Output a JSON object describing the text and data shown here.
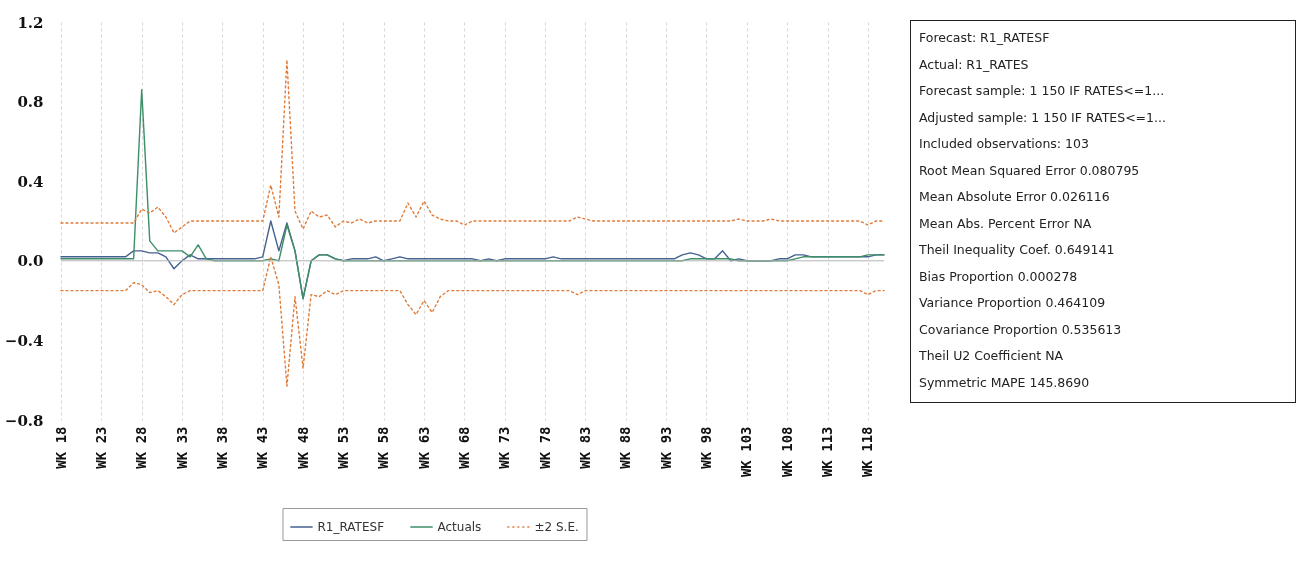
{
  "chart_data": [
    {
      "type": "line",
      "categories": [
        "WK 18",
        null,
        null,
        null,
        null,
        "WK 23",
        null,
        null,
        null,
        null,
        "WK 28",
        null,
        null,
        null,
        null,
        "WK 33",
        null,
        null,
        null,
        null,
        "WK 38",
        null,
        null,
        null,
        null,
        "WK 43",
        null,
        null,
        null,
        null,
        "WK 48",
        null,
        null,
        null,
        null,
        "WK 53",
        null,
        null,
        null,
        null,
        "WK 58",
        null,
        null,
        null,
        null,
        "WK 63",
        null,
        null,
        null,
        null,
        "WK 68",
        null,
        null,
        null,
        null,
        "WK 73",
        null,
        null,
        null,
        null,
        "WK 78",
        null,
        null,
        null,
        null,
        "WK 83",
        null,
        null,
        null,
        null,
        "WK 88",
        null,
        null,
        null,
        null,
        "WK 93",
        null,
        null,
        null,
        null,
        "WK 98",
        null,
        null,
        null,
        null,
        "WK 103",
        null,
        null,
        null,
        null,
        "WK 108",
        null,
        null,
        null,
        null,
        "WK 113",
        null,
        null,
        null,
        null,
        "WK 118",
        null,
        null
      ],
      "series": [
        {
          "name": "R1_RATESF",
          "color": "#44628f",
          "line_style": "solid",
          "values": [
            0.02,
            0.02,
            0.02,
            0.02,
            0.02,
            0.02,
            0.02,
            0.02,
            0.02,
            0.05,
            0.05,
            0.04,
            0.04,
            0.02,
            -0.04,
            0.0,
            0.03,
            0.01,
            0.01,
            0.01,
            0.01,
            0.01,
            0.01,
            0.01,
            0.01,
            0.02,
            0.2,
            0.05,
            0.19,
            0.05,
            -0.19,
            0.0,
            0.03,
            0.03,
            0.01,
            0.0,
            0.01,
            0.01,
            0.01,
            0.02,
            0.0,
            0.01,
            0.02,
            0.01,
            0.01,
            0.01,
            0.01,
            0.01,
            0.01,
            0.01,
            0.01,
            0.01,
            0.0,
            0.01,
            0.0,
            0.01,
            0.01,
            0.01,
            0.01,
            0.01,
            0.01,
            0.02,
            0.01,
            0.01,
            0.01,
            0.01,
            0.01,
            0.01,
            0.01,
            0.01,
            0.01,
            0.01,
            0.01,
            0.01,
            0.01,
            0.01,
            0.01,
            0.03,
            0.04,
            0.03,
            0.01,
            0.01,
            0.05,
            0.0,
            0.01,
            0.0,
            0.0,
            0.0,
            0.0,
            0.01,
            0.01,
            0.03,
            0.03,
            0.02,
            0.02,
            0.02,
            0.02,
            0.02,
            0.02,
            0.02,
            0.02,
            0.03,
            0.03
          ]
        },
        {
          "name": "Actuals",
          "color": "#3e8e67",
          "line_style": "solid",
          "values": [
            0.01,
            0.01,
            0.01,
            0.01,
            0.01,
            0.01,
            0.01,
            0.01,
            0.01,
            0.01,
            0.86,
            0.1,
            0.05,
            0.05,
            0.05,
            0.05,
            0.02,
            0.08,
            0.01,
            0.0,
            0.0,
            0.0,
            0.0,
            0.0,
            0.0,
            0.0,
            0.01,
            0.0,
            0.18,
            0.05,
            -0.19,
            0.0,
            0.03,
            0.03,
            0.01,
            0.0,
            0.0,
            0.0,
            0.0,
            0.0,
            0.0,
            0.0,
            0.0,
            0.0,
            0.0,
            0.0,
            0.0,
            0.0,
            0.0,
            0.0,
            0.0,
            0.0,
            0.0,
            0.0,
            0.0,
            0.0,
            0.0,
            0.0,
            0.0,
            0.0,
            0.0,
            0.0,
            0.0,
            0.0,
            0.0,
            0.0,
            0.0,
            0.0,
            0.0,
            0.0,
            0.0,
            0.0,
            0.0,
            0.0,
            0.0,
            0.0,
            0.0,
            0.0,
            0.01,
            0.01,
            0.01,
            0.01,
            0.01,
            0.01,
            0.0,
            0.0,
            0.0,
            0.0,
            0.0,
            0.0,
            0.0,
            0.01,
            0.02,
            0.02,
            0.02,
            0.02,
            0.02,
            0.02,
            0.02,
            0.02,
            0.03,
            0.03,
            0.03
          ]
        },
        {
          "name": "±2 S.E.",
          "color": "#e07b39",
          "line_style": "dotted",
          "values": [
            0.19,
            0.19,
            0.19,
            0.19,
            0.19,
            0.19,
            0.19,
            0.19,
            0.19,
            0.19,
            0.26,
            0.24,
            0.27,
            0.22,
            0.14,
            0.17,
            0.2,
            0.2,
            0.2,
            0.2,
            0.2,
            0.2,
            0.2,
            0.2,
            0.2,
            0.2,
            0.38,
            0.22,
            1.01,
            0.25,
            0.16,
            0.25,
            0.22,
            0.23,
            0.17,
            0.2,
            0.19,
            0.21,
            0.19,
            0.2,
            0.2,
            0.2,
            0.2,
            0.29,
            0.22,
            0.3,
            0.23,
            0.21,
            0.2,
            0.2,
            0.18,
            0.2,
            0.2,
            0.2,
            0.2,
            0.2,
            0.2,
            0.2,
            0.2,
            0.2,
            0.2,
            0.2,
            0.2,
            0.2,
            0.22,
            0.21,
            0.2,
            0.2,
            0.2,
            0.2,
            0.2,
            0.2,
            0.2,
            0.2,
            0.2,
            0.2,
            0.2,
            0.2,
            0.2,
            0.2,
            0.2,
            0.2,
            0.2,
            0.2,
            0.21,
            0.2,
            0.2,
            0.2,
            0.21,
            0.2,
            0.2,
            0.2,
            0.2,
            0.2,
            0.2,
            0.2,
            0.2,
            0.2,
            0.2,
            0.2,
            0.18,
            0.2,
            0.2
          ]
        },
        {
          "color": "#e07b39",
          "line_style": "dotted",
          "values": [
            -0.15,
            -0.15,
            -0.15,
            -0.15,
            -0.15,
            -0.15,
            -0.15,
            -0.15,
            -0.15,
            -0.11,
            -0.12,
            -0.16,
            -0.15,
            -0.18,
            -0.22,
            -0.17,
            -0.15,
            -0.15,
            -0.15,
            -0.15,
            -0.15,
            -0.15,
            -0.15,
            -0.15,
            -0.15,
            -0.15,
            0.02,
            -0.12,
            -0.63,
            -0.18,
            -0.54,
            -0.17,
            -0.18,
            -0.15,
            -0.17,
            -0.15,
            -0.15,
            -0.15,
            -0.15,
            -0.15,
            -0.15,
            -0.15,
            -0.15,
            -0.22,
            -0.27,
            -0.2,
            -0.26,
            -0.18,
            -0.15,
            -0.15,
            -0.15,
            -0.15,
            -0.15,
            -0.15,
            -0.15,
            -0.15,
            -0.15,
            -0.15,
            -0.15,
            -0.15,
            -0.15,
            -0.15,
            -0.15,
            -0.15,
            -0.17,
            -0.15,
            -0.15,
            -0.15,
            -0.15,
            -0.15,
            -0.15,
            -0.15,
            -0.15,
            -0.15,
            -0.15,
            -0.15,
            -0.15,
            -0.15,
            -0.15,
            -0.15,
            -0.15,
            -0.15,
            -0.15,
            -0.15,
            -0.15,
            -0.15,
            -0.15,
            -0.15,
            -0.15,
            -0.15,
            -0.15,
            -0.15,
            -0.15,
            -0.15,
            -0.15,
            -0.15,
            -0.15,
            -0.15,
            -0.15,
            -0.15,
            -0.17,
            -0.15,
            -0.15
          ]
        }
      ],
      "ylim": [
        -0.8,
        1.2
      ],
      "yticks": [
        -0.8,
        -0.4,
        {
          "value": 0,
          "label": "0.0"
        },
        0.4,
        0.8,
        1.2
      ],
      "ref_lines": [
        {
          "axis": "y",
          "value": 0,
          "color": "#b4b4b4"
        }
      ],
      "grid": "x",
      "legend": "bottom"
    },
    {
      "type": "other",
      "annotations": [
        "Forecast: R1_RATESF",
        "Actual: R1_RATES",
        "Forecast sample: 1 150 IF RATES<=1...",
        "Adjusted sample: 1 150 IF RATES<=1...",
        "Included observations: 103",
        "Root Mean Squared Error 0.080795",
        "Mean Absolute Error 0.026116",
        "Mean Abs. Percent Error NA",
        "Theil Inequality Coef. 0.649141",
        "Bias Proportion 0.000278",
        "Variance Proportion 0.464109",
        "Covariance Proportion 0.535613",
        "Theil U2 Coefficient NA",
        "Symmetric MAPE 145.8690"
      ]
    }
  ]
}
